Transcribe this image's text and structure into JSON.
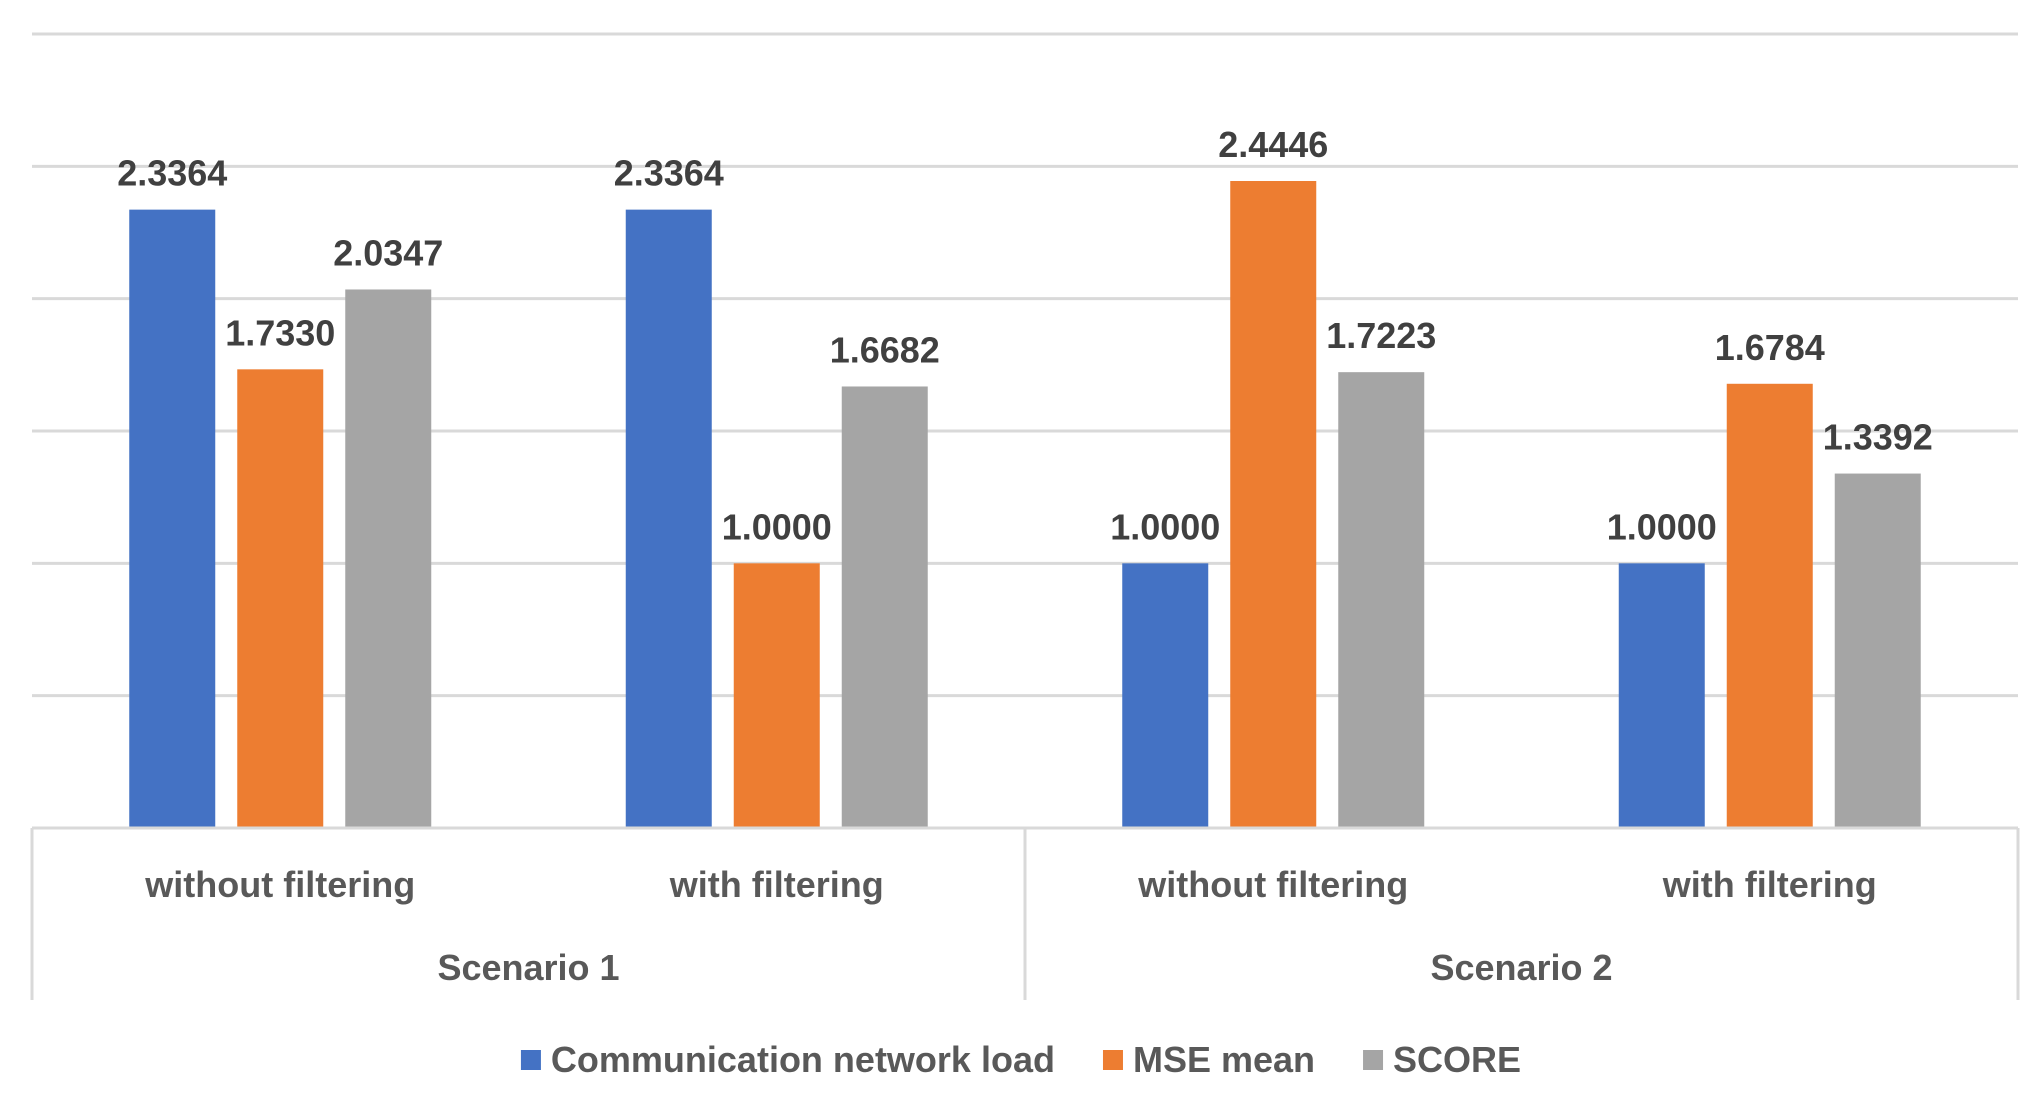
{
  "chart_data": {
    "type": "bar",
    "title": "",
    "xlabel": "",
    "ylabel": "",
    "ylim": [
      0,
      3
    ],
    "grid": true,
    "legend": "bottom",
    "groups": [
      {
        "label": "Scenario 1",
        "categories": [
          "without filtering",
          "with filtering"
        ]
      },
      {
        "label": "Scenario 2",
        "categories": [
          "without filtering",
          "with filtering"
        ]
      }
    ],
    "categories": [
      "without filtering",
      "with filtering",
      "without filtering",
      "with filtering"
    ],
    "series": [
      {
        "name": "Communication network load",
        "color": "#4472C4",
        "values": [
          2.3364,
          2.3364,
          1.0,
          1.0
        ],
        "labels": [
          "2.3364",
          "2.3364",
          "1.0000",
          "1.0000"
        ]
      },
      {
        "name": "MSE mean",
        "color": "#ED7D31",
        "values": [
          1.733,
          1.0,
          2.4446,
          1.6784
        ],
        "labels": [
          "1.7330",
          "1.0000",
          "2.4446",
          "1.6784"
        ]
      },
      {
        "name": "SCORE",
        "color": "#A5A5A5",
        "values": [
          2.0347,
          1.6682,
          1.7223,
          1.3392
        ],
        "labels": [
          "2.0347",
          "1.6682",
          "1.7223",
          "1.3392"
        ]
      }
    ]
  }
}
